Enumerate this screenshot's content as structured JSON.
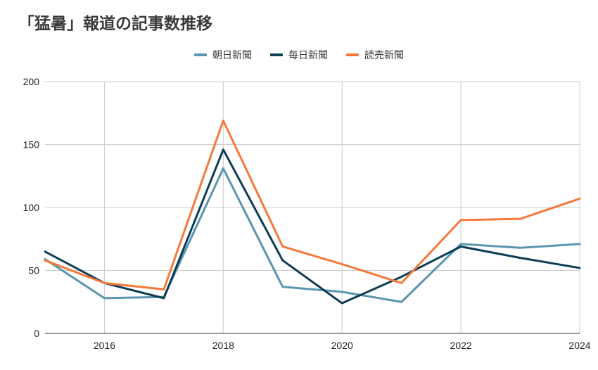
{
  "chart_data": {
    "type": "line",
    "title": "「猛暑」報道の記事数推移",
    "xlabel": "",
    "ylabel": "",
    "x": [
      2015,
      2016,
      2017,
      2018,
      2019,
      2020,
      2021,
      2022,
      2023,
      2024
    ],
    "xlim": [
      2015,
      2024
    ],
    "xticks": [
      "2016",
      "2018",
      "2020",
      "2022",
      "2024"
    ],
    "ylim": [
      0,
      200
    ],
    "yticks": [
      "0",
      "50",
      "100",
      "150",
      "200"
    ],
    "grid": true,
    "legend_position": "top",
    "series": [
      {
        "name": "朝日新聞",
        "color": "#5b95b0",
        "values": [
          59,
          28,
          29,
          131,
          37,
          33,
          25,
          71,
          68,
          71
        ]
      },
      {
        "name": "毎日新聞",
        "color": "#0d3d56",
        "values": [
          65,
          40,
          28,
          146,
          58,
          24,
          45,
          69,
          60,
          52
        ]
      },
      {
        "name": "読売新聞",
        "color": "#f5793a",
        "values": [
          58,
          40,
          35,
          169,
          69,
          55,
          40,
          90,
          91,
          107
        ]
      }
    ]
  }
}
